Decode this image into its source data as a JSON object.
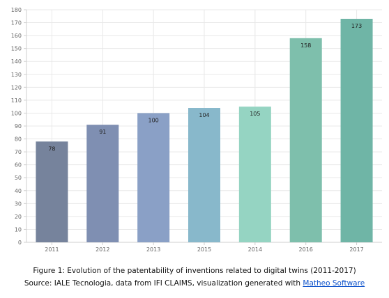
{
  "chart_data": {
    "type": "bar",
    "categories": [
      "2011",
      "2012",
      "2013",
      "2015",
      "2014",
      "2016",
      "2017"
    ],
    "values": [
      78,
      91,
      100,
      104,
      105,
      158,
      173
    ],
    "colors": [
      "#76839c",
      "#7f8fb2",
      "#8aa0c6",
      "#88b8cb",
      "#95d4c2",
      "#7ebfac",
      "#6fb5a6"
    ],
    "ylim": [
      0,
      180
    ],
    "ytick_step": 10,
    "grid": true,
    "legend": "none"
  },
  "caption": {
    "line1": "Figure 1: Evolution of the patentability of inventions related to digital twins (2011-2017)",
    "line2_prefix": "Source: IALE Tecnologia, data from IFI CLAIMS, visualization generated with ",
    "link_text": "Matheo Software"
  }
}
